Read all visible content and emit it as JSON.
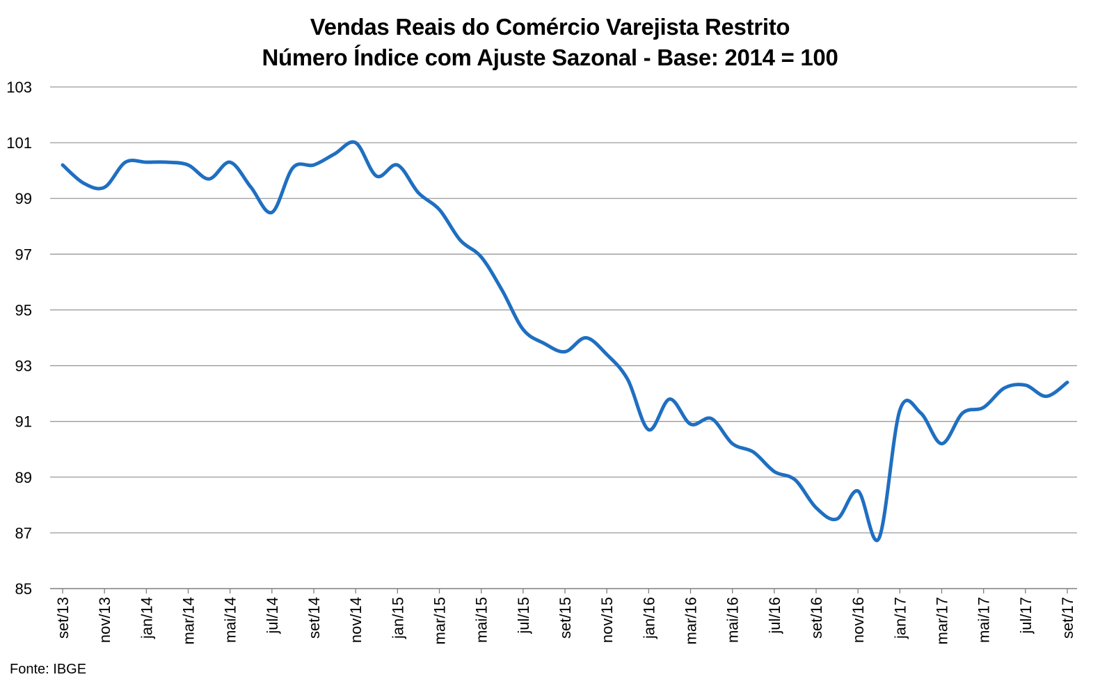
{
  "chart_data": {
    "type": "line",
    "title": "Vendas Reais do Comércio Varejista Restrito",
    "subtitle": "Número Índice com Ajuste Sazonal - Base: 2014 = 100",
    "source": "Fonte: IBGE",
    "xlabel": "",
    "ylabel": "",
    "ylim": [
      85,
      103
    ],
    "yticks": [
      85,
      87,
      89,
      91,
      93,
      95,
      97,
      99,
      101,
      103
    ],
    "grid": true,
    "line_color": "#1f6fc1",
    "grid_color": "#9a9a9a",
    "x": [
      "set/13",
      "out/13",
      "nov/13",
      "dez/13",
      "jan/14",
      "fev/14",
      "mar/14",
      "abr/14",
      "mai/14",
      "jun/14",
      "jul/14",
      "ago/14",
      "set/14",
      "out/14",
      "nov/14",
      "dez/14",
      "jan/15",
      "fev/15",
      "mar/15",
      "abr/15",
      "mai/15",
      "jun/15",
      "jul/15",
      "ago/15",
      "set/15",
      "out/15",
      "nov/15",
      "dez/15",
      "jan/16",
      "fev/16",
      "mar/16",
      "abr/16",
      "mai/16",
      "jun/16",
      "jul/16",
      "ago/16",
      "set/16",
      "out/16",
      "nov/16",
      "dez/16",
      "jan/17",
      "fev/17",
      "mar/17",
      "abr/17",
      "mai/17",
      "jun/17",
      "jul/17",
      "ago/17",
      "set/17"
    ],
    "x_tick_labels": [
      "set/13",
      "nov/13",
      "jan/14",
      "mar/14",
      "mai/14",
      "jul/14",
      "set/14",
      "nov/14",
      "jan/15",
      "mar/15",
      "mai/15",
      "jul/15",
      "set/15",
      "nov/15",
      "jan/16",
      "mar/16",
      "mai/16",
      "jul/16",
      "set/16",
      "nov/16",
      "jan/17",
      "mar/17",
      "mai/17",
      "jul/17",
      "set/17"
    ],
    "series": [
      {
        "values": [
          100.2,
          99.55,
          99.4,
          100.3,
          100.3,
          100.3,
          100.2,
          99.7,
          100.3,
          99.4,
          98.5,
          100.1,
          100.2,
          100.6,
          101.0,
          99.8,
          100.2,
          99.2,
          98.6,
          97.5,
          96.9,
          95.7,
          94.3,
          93.8,
          93.5,
          94.0,
          93.4,
          92.5,
          90.7,
          91.8,
          90.9,
          91.1,
          90.2,
          89.9,
          89.2,
          88.9,
          87.9,
          87.5,
          88.5,
          86.8,
          91.4,
          91.3,
          90.2,
          91.3,
          91.5,
          92.2,
          92.3,
          91.9,
          92.4
        ]
      }
    ]
  }
}
